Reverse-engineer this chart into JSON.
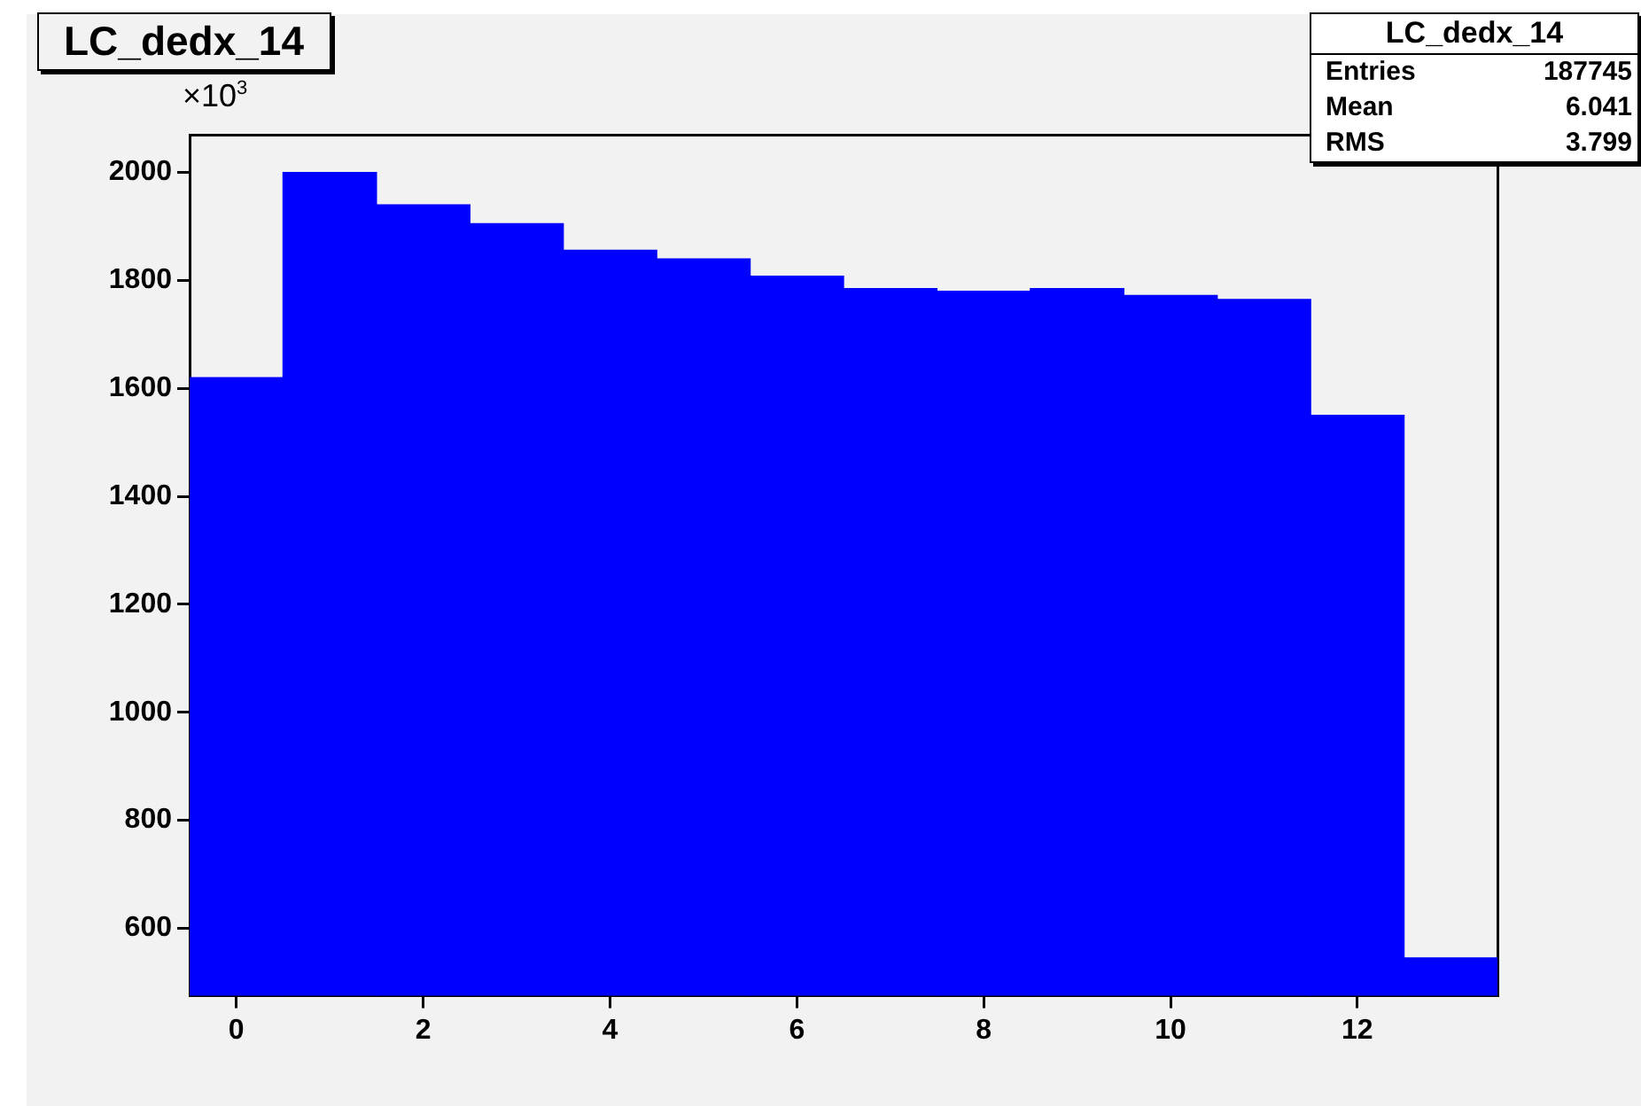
{
  "chart_data": {
    "type": "histogram",
    "title": "LC_dedx_14",
    "bins": [
      -0.5,
      0.5,
      1.5,
      2.5,
      3.5,
      4.5,
      5.5,
      6.5,
      7.5,
      8.5,
      9.5,
      10.5,
      11.5,
      12.5,
      13.5
    ],
    "values": [
      1620,
      2000,
      1940,
      1905,
      1856,
      1840,
      1808,
      1785,
      1780,
      1785,
      1772,
      1765,
      1550,
      545
    ],
    "color": "#0000ff",
    "xlim": [
      -0.5,
      13.5
    ],
    "xticks": [
      0,
      2,
      4,
      6,
      8,
      10,
      12
    ],
    "ylim": [
      475,
      2070
    ],
    "yticks": [
      600,
      800,
      1000,
      1200,
      1400,
      1600,
      1800,
      2000
    ],
    "grid": false,
    "legend": false,
    "annotations": [
      "×10$^{3}$",
      "LC_dedx_14",
      "Entries 187745",
      "Mean 6.041",
      "RMS 3.799"
    ]
  }
}
